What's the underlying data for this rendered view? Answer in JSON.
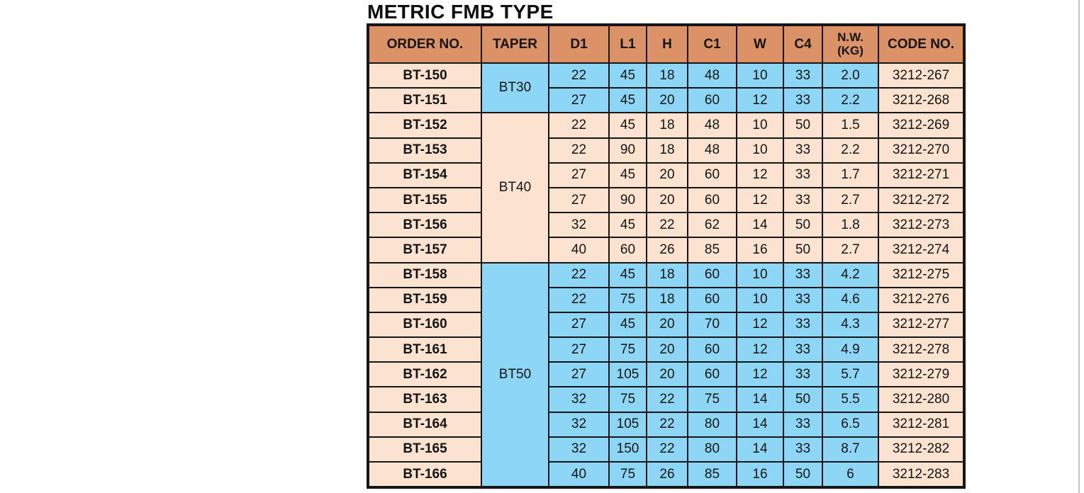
{
  "title": "METRIC FMB TYPE",
  "colors": {
    "header_bg": "#DB9266",
    "row_peach": "#FBE3D0",
    "row_blue": "#8DD6F5",
    "border": "#161616",
    "page_edge_line": "#C4C4C4"
  },
  "table": {
    "columns": [
      {
        "label": "ORDER NO."
      },
      {
        "label": "TAPER"
      },
      {
        "label": "D1"
      },
      {
        "label": "L1"
      },
      {
        "label": "H"
      },
      {
        "label": "C1"
      },
      {
        "label": "W"
      },
      {
        "label": "C4"
      },
      {
        "label": "N.W.\n(KG)"
      },
      {
        "label": "CODE NO."
      }
    ],
    "groups": [
      {
        "taper": "BT30",
        "tinted": true,
        "rows": [
          {
            "order": "BT-150",
            "d1": "22",
            "l1": "45",
            "h": "18",
            "c1": "48",
            "w": "10",
            "c4": "33",
            "nw": "2.0",
            "code": "3212-267"
          },
          {
            "order": "BT-151",
            "d1": "27",
            "l1": "45",
            "h": "20",
            "c1": "60",
            "w": "12",
            "c4": "33",
            "nw": "2.2",
            "code": "3212-268"
          }
        ]
      },
      {
        "taper": "BT40",
        "tinted": false,
        "rows": [
          {
            "order": "BT-152",
            "d1": "22",
            "l1": "45",
            "h": "18",
            "c1": "48",
            "w": "10",
            "c4": "50",
            "nw": "1.5",
            "code": "3212-269"
          },
          {
            "order": "BT-153",
            "d1": "22",
            "l1": "90",
            "h": "18",
            "c1": "48",
            "w": "10",
            "c4": "33",
            "nw": "2.2",
            "code": "3212-270"
          },
          {
            "order": "BT-154",
            "d1": "27",
            "l1": "45",
            "h": "20",
            "c1": "60",
            "w": "12",
            "c4": "33",
            "nw": "1.7",
            "code": "3212-271"
          },
          {
            "order": "BT-155",
            "d1": "27",
            "l1": "90",
            "h": "20",
            "c1": "60",
            "w": "12",
            "c4": "33",
            "nw": "2.7",
            "code": "3212-272"
          },
          {
            "order": "BT-156",
            "d1": "32",
            "l1": "45",
            "h": "22",
            "c1": "62",
            "w": "14",
            "c4": "50",
            "nw": "1.8",
            "code": "3212-273"
          },
          {
            "order": "BT-157",
            "d1": "40",
            "l1": "60",
            "h": "26",
            "c1": "85",
            "w": "16",
            "c4": "50",
            "nw": "2.7",
            "code": "3212-274"
          }
        ]
      },
      {
        "taper": "BT50",
        "tinted": true,
        "rows": [
          {
            "order": "BT-158",
            "d1": "22",
            "l1": "45",
            "h": "18",
            "c1": "60",
            "w": "10",
            "c4": "33",
            "nw": "4.2",
            "code": "3212-275"
          },
          {
            "order": "BT-159",
            "d1": "22",
            "l1": "75",
            "h": "18",
            "c1": "60",
            "w": "10",
            "c4": "33",
            "nw": "4.6",
            "code": "3212-276"
          },
          {
            "order": "BT-160",
            "d1": "27",
            "l1": "45",
            "h": "20",
            "c1": "70",
            "w": "12",
            "c4": "33",
            "nw": "4.3",
            "code": "3212-277"
          },
          {
            "order": "BT-161",
            "d1": "27",
            "l1": "75",
            "h": "20",
            "c1": "60",
            "w": "12",
            "c4": "33",
            "nw": "4.9",
            "code": "3212-278"
          },
          {
            "order": "BT-162",
            "d1": "27",
            "l1": "105",
            "h": "20",
            "c1": "60",
            "w": "12",
            "c4": "33",
            "nw": "5.7",
            "code": "3212-279"
          },
          {
            "order": "BT-163",
            "d1": "32",
            "l1": "75",
            "h": "22",
            "c1": "75",
            "w": "14",
            "c4": "50",
            "nw": "5.5",
            "code": "3212-280"
          },
          {
            "order": "BT-164",
            "d1": "32",
            "l1": "105",
            "h": "22",
            "c1": "80",
            "w": "14",
            "c4": "33",
            "nw": "6.5",
            "code": "3212-281"
          },
          {
            "order": "BT-165",
            "d1": "32",
            "l1": "150",
            "h": "22",
            "c1": "80",
            "w": "14",
            "c4": "33",
            "nw": "8.7",
            "code": "3212-282"
          },
          {
            "order": "BT-166",
            "d1": "40",
            "l1": "75",
            "h": "26",
            "c1": "85",
            "w": "16",
            "c4": "50",
            "nw": "6",
            "code": "3212-283"
          }
        ]
      }
    ]
  }
}
